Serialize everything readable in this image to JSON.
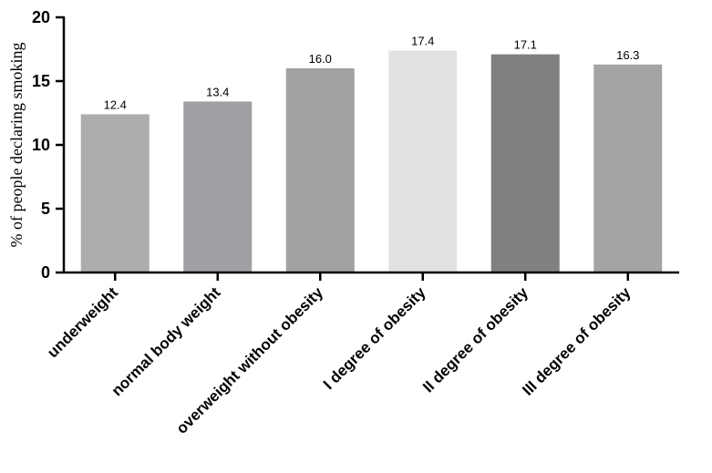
{
  "chart_data": {
    "type": "bar",
    "title": "",
    "xlabel": "",
    "ylabel": "% of people declaring smoking",
    "ylim": [
      0,
      20
    ],
    "yticks": [
      0,
      5,
      10,
      15,
      20
    ],
    "grid": false,
    "categories": [
      "underweight",
      "normal body weight",
      "overweight without obesity",
      "I degree of obesity",
      "II degree of obesity",
      "III degree of obesity"
    ],
    "values": [
      12.4,
      13.4,
      16.0,
      17.4,
      17.1,
      16.3
    ],
    "value_labels": [
      "12.4",
      "13.4",
      "16.0",
      "17.4",
      "17.1",
      "16.3"
    ],
    "colors": [
      "#adadad",
      "#a0a0a4",
      "#a2a2a2",
      "#e2e2e2",
      "#808080",
      "#a4a4a4"
    ]
  }
}
